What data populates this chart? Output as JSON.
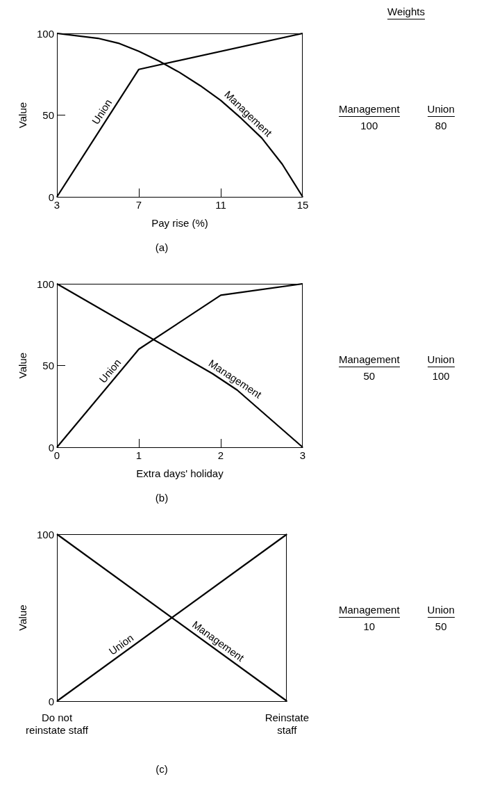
{
  "chart_data": [
    {
      "type": "line",
      "title": "(a)",
      "xlabel": "Pay rise (%)",
      "ylabel": "Value",
      "xlim": [
        3,
        15
      ],
      "xticks": [
        3,
        7,
        11,
        15
      ],
      "ylim": [
        0,
        100
      ],
      "yticks": [
        0,
        50,
        100
      ],
      "grid": false,
      "legend": false,
      "marker": "none",
      "line_style": "solid",
      "annotations": [
        "Weights",
        "Management",
        "100",
        "Union",
        "80"
      ],
      "series": [
        {
          "name": "Union",
          "color": "#000000",
          "x": [
            3,
            7,
            15
          ],
          "values": [
            0,
            78,
            100
          ]
        },
        {
          "name": "Management",
          "color": "#000000",
          "x": [
            3,
            5,
            6,
            7,
            8,
            9,
            10,
            11,
            12,
            13,
            14,
            15
          ],
          "values": [
            100,
            97,
            94,
            89,
            83,
            76,
            68,
            59,
            48,
            36,
            20,
            0
          ]
        }
      ]
    },
    {
      "type": "line",
      "title": "(b)",
      "xlabel": "Extra days' holiday",
      "ylabel": "Value",
      "xlim": [
        0,
        3
      ],
      "xticks": [
        0,
        1,
        2,
        3
      ],
      "ylim": [
        0,
        100
      ],
      "yticks": [
        0,
        50,
        100
      ],
      "grid": false,
      "legend": false,
      "marker": "none",
      "line_style": "solid",
      "annotations": [
        "Management",
        "50",
        "Union",
        "100"
      ],
      "series": [
        {
          "name": "Union",
          "color": "#000000",
          "x": [
            0,
            1,
            2,
            3
          ],
          "values": [
            0,
            60,
            93,
            100
          ]
        },
        {
          "name": "Management",
          "color": "#000000",
          "x": [
            0,
            1.9,
            2.2,
            3
          ],
          "values": [
            100,
            45,
            35,
            0
          ]
        }
      ]
    },
    {
      "type": "line",
      "title": "(c)",
      "ylabel": "Value",
      "categories": [
        "Do not\nreinstate staff",
        "Reinstate\nstaff"
      ],
      "ylim": [
        0,
        100
      ],
      "yticks": [
        0,
        100
      ],
      "legend": false,
      "marker": "none",
      "line_style": "solid",
      "annotations": [
        "Management",
        "10",
        "Union",
        "50"
      ],
      "series": [
        {
          "name": "Union",
          "color": "#000000",
          "values": [
            0,
            100
          ]
        },
        {
          "name": "Management",
          "color": "#000000",
          "values": [
            100,
            0
          ]
        }
      ]
    }
  ]
}
